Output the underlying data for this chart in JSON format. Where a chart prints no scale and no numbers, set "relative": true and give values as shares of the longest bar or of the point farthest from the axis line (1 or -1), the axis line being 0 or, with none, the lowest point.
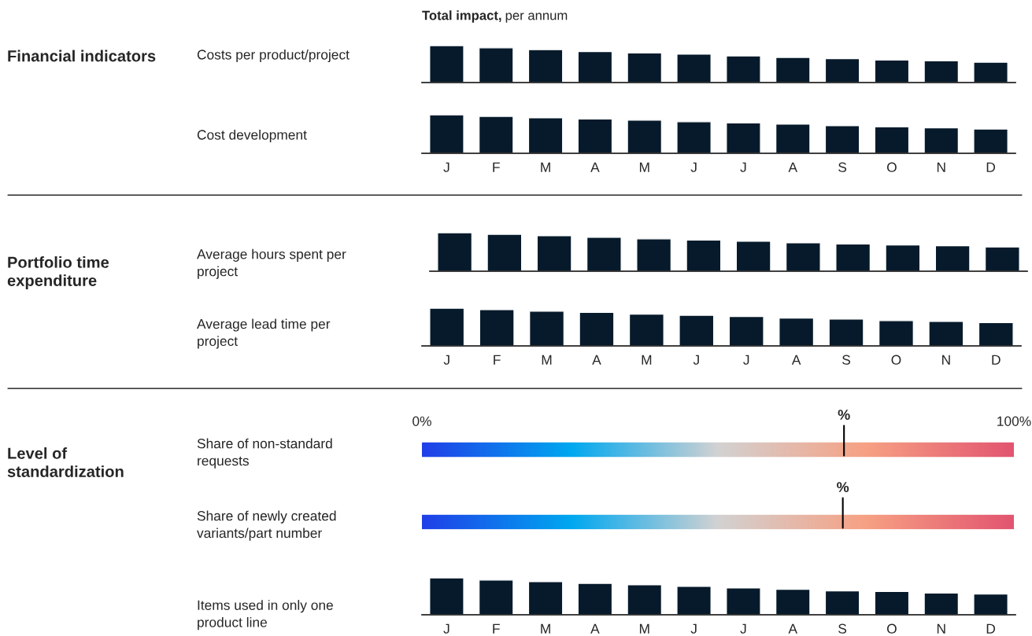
{
  "chart_data": [
    {
      "type": "bar",
      "title": "Total impact, per annum",
      "ylabel": "Costs per product/project",
      "annotations": [
        "Financial indicators"
      ],
      "relative": true,
      "color": "#061a2b",
      "categories": [
        null,
        null,
        null,
        null,
        null,
        null,
        null,
        null,
        null,
        null,
        null,
        null
      ],
      "values": [
        1,
        0.94,
        0.89,
        0.84,
        0.8,
        0.77,
        0.72,
        0.68,
        0.65,
        0.61,
        0.59,
        0.55
      ]
    },
    {
      "type": "bar",
      "ylabel": "Cost development",
      "relative": true,
      "color": "#061a2b",
      "categories": [
        "J",
        "F",
        "M",
        "A",
        "M",
        "J",
        "J",
        "A",
        "S",
        "O",
        "N",
        "D"
      ],
      "values": [
        1,
        0.96,
        0.92,
        0.89,
        0.86,
        0.82,
        0.79,
        0.76,
        0.72,
        0.69,
        0.66,
        0.63
      ]
    },
    {
      "type": "bar",
      "ylabel": "Average hours spent per\nproject",
      "annotations": [
        "Portfolio time\nexpenditure"
      ],
      "relative": true,
      "color": "#061a2b",
      "categories": [
        null,
        null,
        null,
        null,
        null,
        null,
        null,
        null,
        null,
        null,
        null,
        null
      ],
      "values": [
        1,
        0.96,
        0.92,
        0.88,
        0.84,
        0.81,
        0.78,
        0.74,
        0.71,
        0.68,
        0.66,
        0.63
      ]
    },
    {
      "type": "bar",
      "ylabel": "Average lead time per\nproject",
      "relative": true,
      "color": "#061a2b",
      "categories": [
        "J",
        "F",
        "M",
        "A",
        "M",
        "J",
        "J",
        "A",
        "S",
        "O",
        "N",
        "D"
      ],
      "values": [
        1,
        0.96,
        0.92,
        0.89,
        0.84,
        0.81,
        0.78,
        0.74,
        0.71,
        0.67,
        0.65,
        0.62
      ]
    },
    {
      "type": "bar",
      "orientation": "horizontal",
      "values": [
        100,
        100
      ],
      "categories": [
        "Share of non-standard\nrequests",
        "Share of newly created\nvariants/part number"
      ],
      "annotations": [
        "Level of\nstandardization"
      ],
      "xlim": [
        0,
        100
      ],
      "xticks": [
        {
          "value": 0,
          "label": "0%"
        },
        {
          "value": 100,
          "label": "100%"
        }
      ],
      "ref_lines": [
        {
          "axis": "x",
          "value": 71.3,
          "label": "%",
          "color": "#000000"
        },
        {
          "axis": "x",
          "value": 71.1,
          "label": "%",
          "color": "#000000"
        }
      ]
    },
    {
      "type": "bar",
      "ylabel": "Items used in only one\nproduct line",
      "relative": true,
      "color": "#061a2b",
      "categories": [
        "J",
        "F",
        "M",
        "A",
        "M",
        "J",
        "J",
        "A",
        "S",
        "O",
        "N",
        "D"
      ],
      "values": [
        1,
        0.94,
        0.9,
        0.85,
        0.81,
        0.77,
        0.73,
        0.69,
        0.65,
        0.63,
        0.59,
        0.56
      ]
    }
  ]
}
